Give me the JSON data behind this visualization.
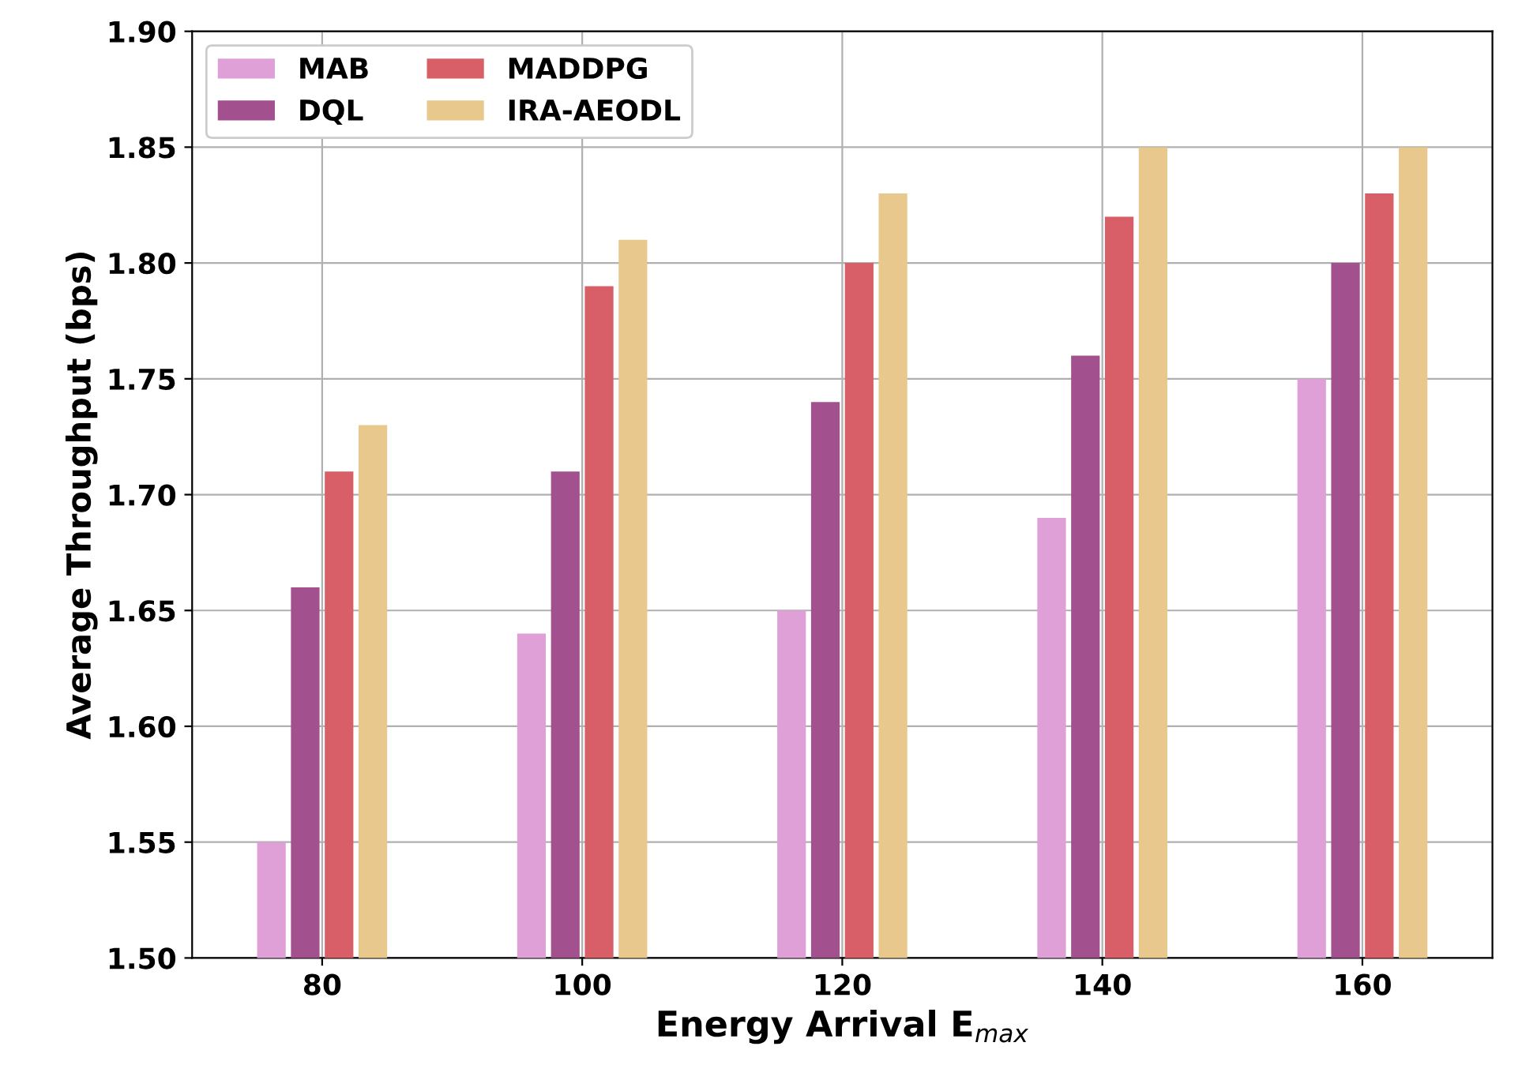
{
  "chart_data": {
    "type": "bar",
    "xlabel": "Energy Arrival E$_{max}$",
    "ylabel": "Average Throughput (bps)",
    "categories": [
      "80",
      "100",
      "120",
      "140",
      "160"
    ],
    "series": [
      {
        "name": "MAB",
        "color": "#dfa0d8",
        "values": [
          1.55,
          1.64,
          1.65,
          1.69,
          1.75
        ]
      },
      {
        "name": "DQL",
        "color": "#a3508f",
        "values": [
          1.66,
          1.71,
          1.74,
          1.76,
          1.8
        ]
      },
      {
        "name": "MADDPG",
        "color": "#d85f68",
        "values": [
          1.71,
          1.79,
          1.8,
          1.82,
          1.83
        ]
      },
      {
        "name": "IRA-AEODL",
        "color": "#e8c88c",
        "values": [
          1.73,
          1.81,
          1.83,
          1.85,
          1.85
        ]
      }
    ],
    "ylim": [
      1.5,
      1.9
    ],
    "yticks": [
      {
        "value": 1.5,
        "label": "1.50"
      },
      {
        "value": 1.55,
        "label": "1.55"
      },
      {
        "value": 1.6,
        "label": "1.60"
      },
      {
        "value": 1.65,
        "label": "1.65"
      },
      {
        "value": 1.7,
        "label": "1.70"
      },
      {
        "value": 1.75,
        "label": "1.75"
      },
      {
        "value": 1.8,
        "label": "1.80"
      },
      {
        "value": 1.85,
        "label": "1.85"
      },
      {
        "value": 1.9,
        "label": "1.90"
      }
    ],
    "grid": true,
    "legend": "top left"
  }
}
